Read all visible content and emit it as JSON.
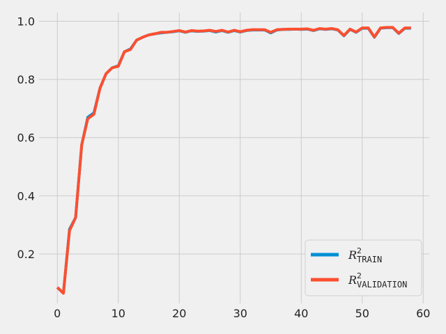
{
  "chart_data": {
    "type": "line",
    "title": "",
    "xlabel": "",
    "ylabel": "",
    "xlim": [
      -3,
      61
    ],
    "ylim": [
      0.03,
      1.03
    ],
    "x_ticks": [
      0,
      10,
      20,
      30,
      40,
      50,
      60
    ],
    "y_ticks": [
      0.2,
      0.4,
      0.6,
      0.8,
      1.0
    ],
    "x_tick_labels": [
      "0",
      "10",
      "20",
      "30",
      "40",
      "50",
      "60"
    ],
    "y_tick_labels": [
      "0.2",
      "0.4",
      "0.6",
      "0.8",
      "1.0"
    ],
    "grid": true,
    "legend_position": "lower-right",
    "series": [
      {
        "name_base": "R",
        "name_sup": "2",
        "name_sub": "TRAIN",
        "color": "#008fd5",
        "values": [
          0.085,
          0.065,
          0.285,
          0.325,
          0.575,
          0.67,
          0.685,
          0.77,
          0.82,
          0.84,
          0.847,
          0.895,
          0.905,
          0.935,
          0.945,
          0.953,
          0.957,
          0.96,
          0.962,
          0.964,
          0.967,
          0.962,
          0.967,
          0.965,
          0.966,
          0.968,
          0.963,
          0.968,
          0.962,
          0.968,
          0.963,
          0.968,
          0.97,
          0.97,
          0.97,
          0.96,
          0.97,
          0.972,
          0.972,
          0.973,
          0.972,
          0.973,
          0.968,
          0.974,
          0.972,
          0.974,
          0.97,
          0.95,
          0.972,
          0.962,
          0.976,
          0.976,
          0.945,
          0.976,
          0.978,
          0.978,
          0.958,
          0.976,
          0.976
        ]
      },
      {
        "name_base": "R",
        "name_sup": "2",
        "name_sub": "VALIDATION",
        "color": "#fc4f30",
        "values": [
          0.085,
          0.065,
          0.28,
          0.325,
          0.575,
          0.665,
          0.68,
          0.77,
          0.82,
          0.84,
          0.845,
          0.895,
          0.903,
          0.935,
          0.945,
          0.953,
          0.957,
          0.962,
          0.962,
          0.965,
          0.968,
          0.963,
          0.968,
          0.966,
          0.967,
          0.969,
          0.965,
          0.969,
          0.963,
          0.969,
          0.964,
          0.969,
          0.971,
          0.971,
          0.971,
          0.962,
          0.971,
          0.972,
          0.973,
          0.973,
          0.973,
          0.974,
          0.969,
          0.975,
          0.973,
          0.975,
          0.971,
          0.951,
          0.973,
          0.963,
          0.977,
          0.977,
          0.946,
          0.977,
          0.979,
          0.979,
          0.959,
          0.977,
          0.977
        ]
      }
    ]
  }
}
